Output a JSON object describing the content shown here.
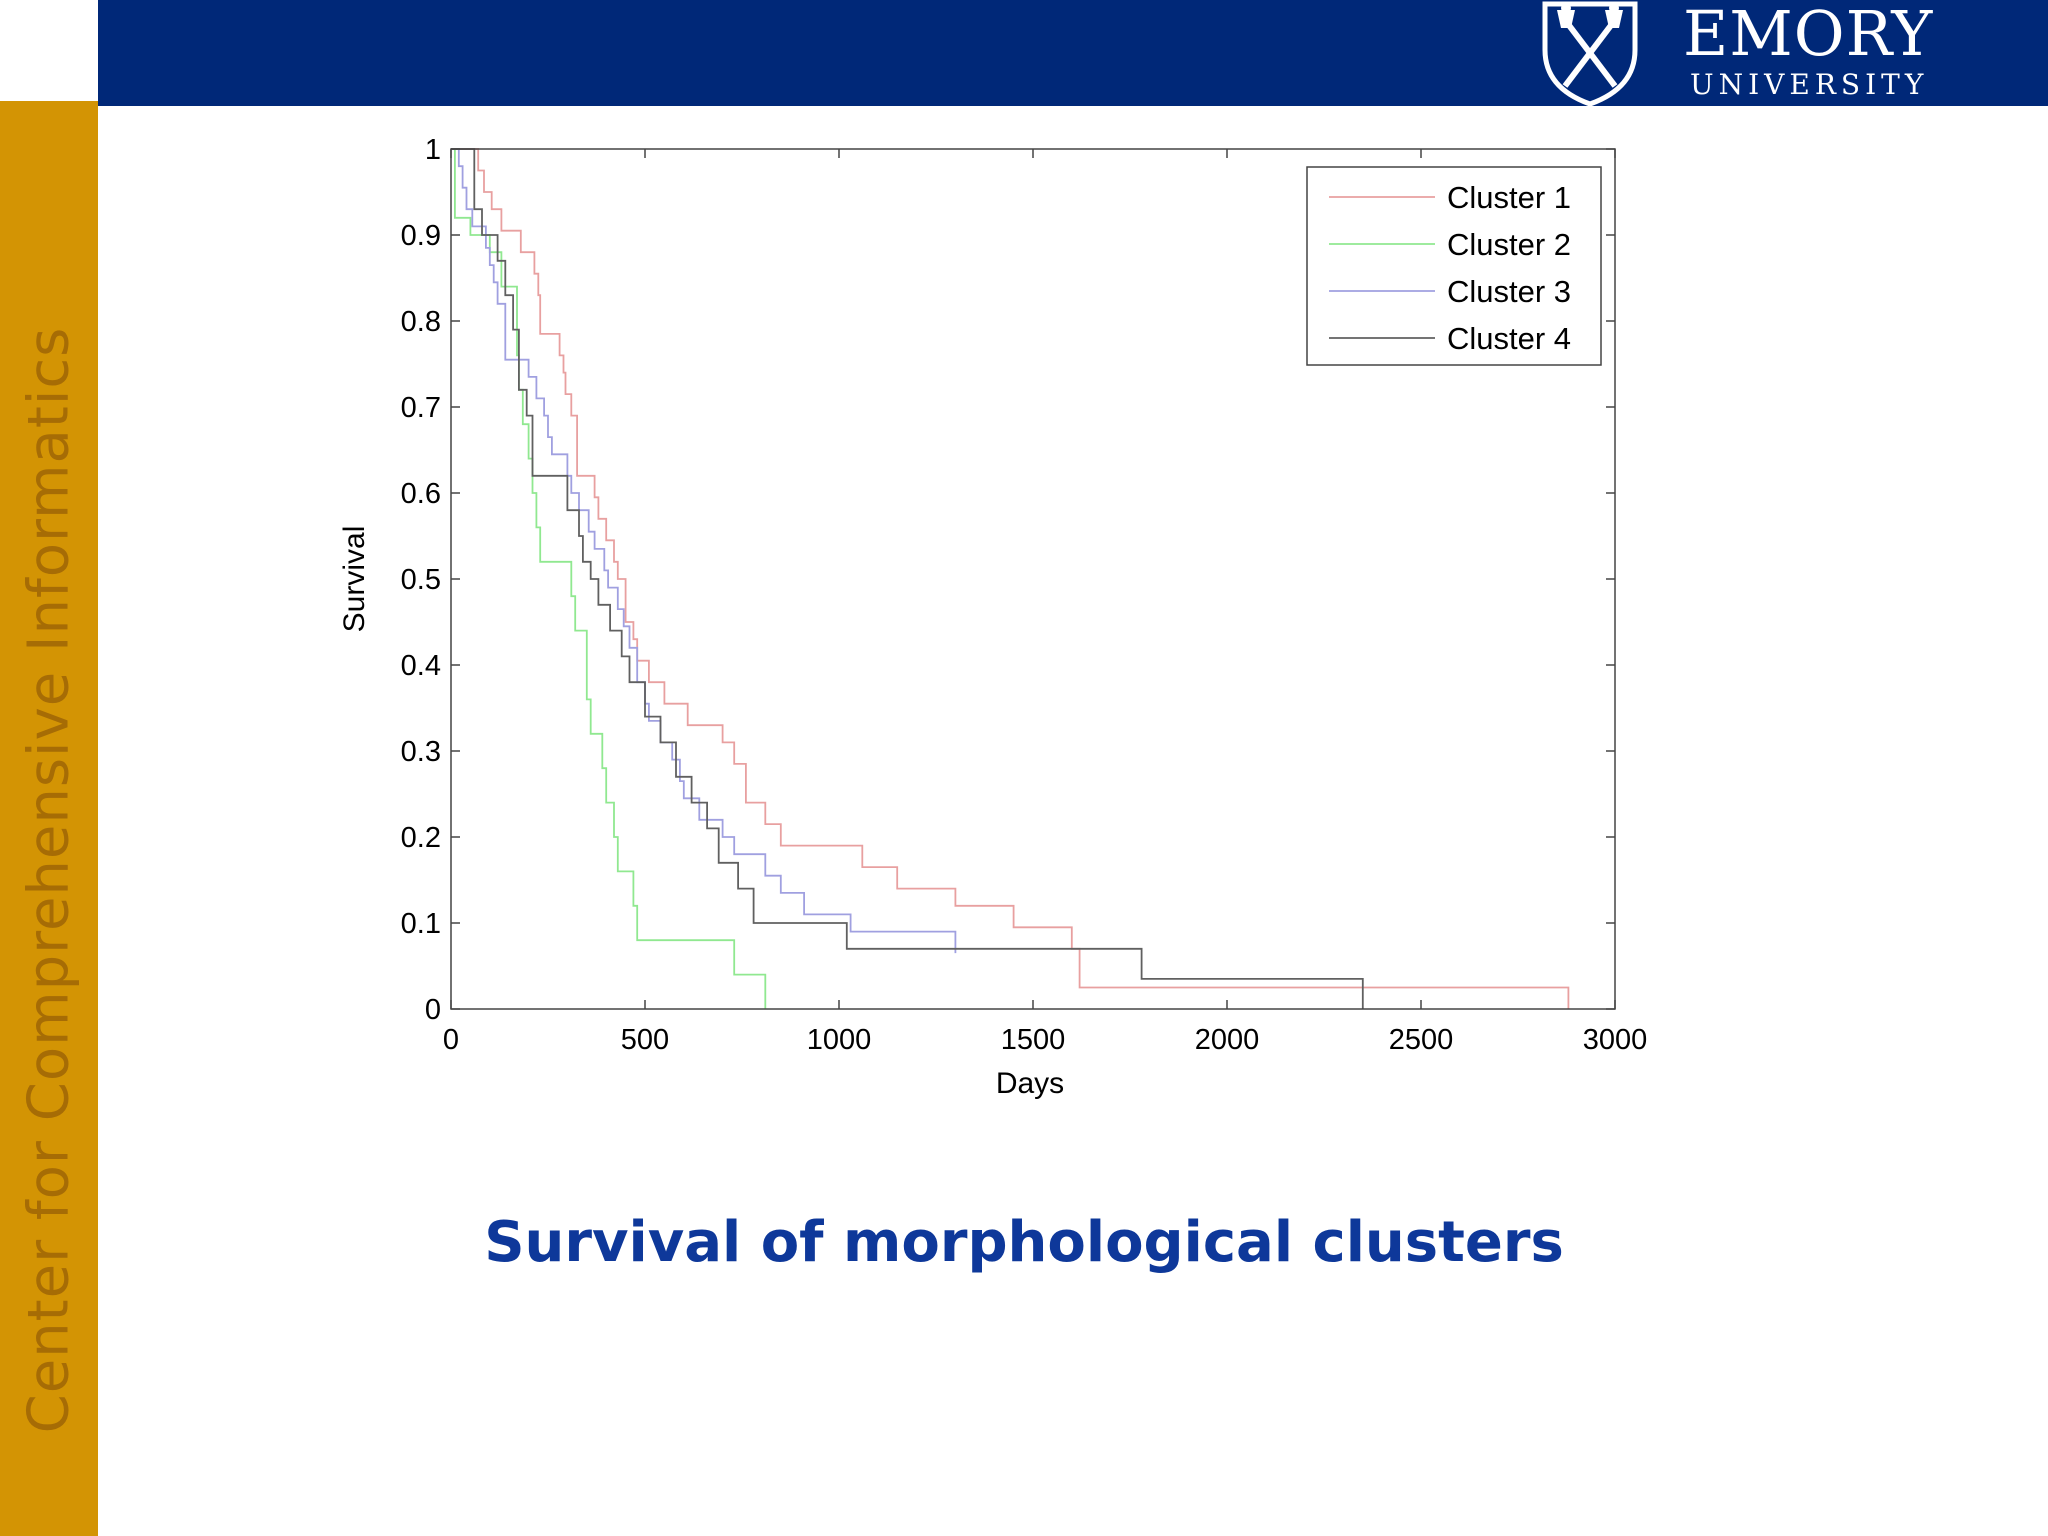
{
  "slide": {
    "title": "Survival of morphological clusters",
    "side_text": "Center for Comprehensive Informatics",
    "logo": {
      "name": "EMORY",
      "sub": "UNIVERSITY",
      "icon": "shield-torch-icon"
    },
    "colors": {
      "header": "#002878",
      "sidebar": "#d39404",
      "sidebar_text": "#a66c05",
      "title": "#0e389a"
    }
  },
  "chart_data": {
    "type": "line",
    "step": true,
    "title": "",
    "xlabel": "Days",
    "ylabel": "Survival",
    "xlim": [
      0,
      3000
    ],
    "ylim": [
      0,
      1
    ],
    "xticks": [
      0,
      500,
      1000,
      1500,
      2000,
      2500,
      3000
    ],
    "yticks": [
      0,
      0.1,
      0.2,
      0.3,
      0.4,
      0.5,
      0.6,
      0.7,
      0.8,
      0.9,
      1
    ],
    "grid": false,
    "legend": "top-right",
    "series": [
      {
        "name": "Cluster 1",
        "color": "#e8a0a0",
        "x": [
          0,
          70,
          85,
          105,
          130,
          180,
          215,
          225,
          230,
          280,
          290,
          295,
          310,
          325,
          370,
          380,
          400,
          420,
          430,
          450,
          470,
          480,
          510,
          550,
          610,
          700,
          730,
          760,
          810,
          850,
          1060,
          1150,
          1300,
          1450,
          1600,
          1620,
          2880
        ],
        "y": [
          1,
          0.975,
          0.95,
          0.93,
          0.905,
          0.88,
          0.855,
          0.83,
          0.785,
          0.76,
          0.74,
          0.715,
          0.69,
          0.62,
          0.595,
          0.57,
          0.545,
          0.52,
          0.5,
          0.45,
          0.43,
          0.405,
          0.38,
          0.355,
          0.33,
          0.31,
          0.285,
          0.24,
          0.215,
          0.19,
          0.165,
          0.14,
          0.12,
          0.095,
          0.07,
          0.025,
          0
        ]
      },
      {
        "name": "Cluster 2",
        "color": "#90e890",
        "x": [
          0,
          10,
          50,
          100,
          130,
          170,
          175,
          185,
          200,
          210,
          220,
          230,
          310,
          320,
          350,
          360,
          390,
          400,
          420,
          430,
          470,
          480,
          730,
          810
        ],
        "y": [
          1,
          0.92,
          0.9,
          0.88,
          0.84,
          0.76,
          0.72,
          0.68,
          0.64,
          0.6,
          0.56,
          0.52,
          0.48,
          0.44,
          0.36,
          0.32,
          0.28,
          0.24,
          0.2,
          0.16,
          0.12,
          0.08,
          0.04,
          0
        ]
      },
      {
        "name": "Cluster 3",
        "color": "#a0a0e0",
        "x": [
          0,
          20,
          30,
          40,
          55,
          90,
          100,
          110,
          120,
          140,
          200,
          220,
          240,
          250,
          260,
          300,
          310,
          330,
          355,
          370,
          395,
          405,
          430,
          445,
          460,
          480,
          500,
          510,
          540,
          570,
          590,
          600,
          640,
          700,
          730,
          810,
          850,
          910,
          1030,
          1300
        ],
        "y": [
          1,
          0.98,
          0.955,
          0.93,
          0.91,
          0.885,
          0.865,
          0.845,
          0.82,
          0.755,
          0.735,
          0.71,
          0.69,
          0.665,
          0.645,
          0.62,
          0.6,
          0.58,
          0.555,
          0.535,
          0.51,
          0.49,
          0.465,
          0.445,
          0.42,
          0.38,
          0.355,
          0.335,
          0.31,
          0.29,
          0.265,
          0.245,
          0.22,
          0.2,
          0.18,
          0.155,
          0.135,
          0.11,
          0.09,
          0.065
        ]
      },
      {
        "name": "Cluster 4",
        "color": "#606060",
        "x": [
          0,
          60,
          80,
          120,
          140,
          160,
          175,
          195,
          210,
          300,
          330,
          340,
          360,
          380,
          410,
          440,
          460,
          500,
          540,
          580,
          620,
          660,
          690,
          740,
          780,
          850,
          1020,
          1200,
          1780,
          2350
        ],
        "y": [
          1,
          0.93,
          0.9,
          0.87,
          0.83,
          0.79,
          0.72,
          0.69,
          0.62,
          0.58,
          0.55,
          0.52,
          0.5,
          0.47,
          0.44,
          0.41,
          0.38,
          0.34,
          0.31,
          0.27,
          0.24,
          0.21,
          0.17,
          0.14,
          0.1,
          0.1,
          0.07,
          0.07,
          0.035,
          0
        ]
      }
    ]
  }
}
